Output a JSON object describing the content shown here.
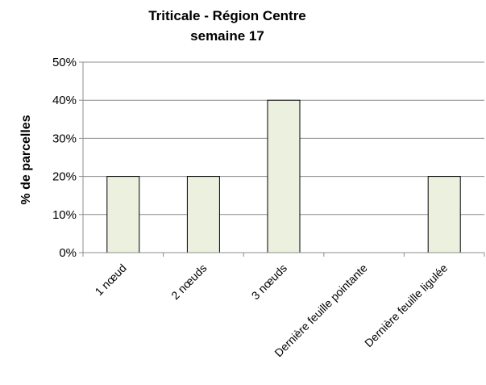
{
  "chart_data": {
    "type": "bar",
    "title_line1": "Triticale - Région Centre",
    "title_line2": "semaine 17",
    "ylabel": "% de parcelles",
    "xlabel": "",
    "ylim": [
      0,
      50
    ],
    "yticks": [
      "0%",
      "10%",
      "20%",
      "30%",
      "40%",
      "50%"
    ],
    "categories": [
      "1 nœud",
      "2 nœuds",
      "3 nœuds",
      "Dernière feuille pointante",
      "Dernière feuille ligulée"
    ],
    "values": [
      20,
      20,
      40,
      0,
      20
    ],
    "grid": true,
    "colors": {
      "bar_fill": "#ebf1de",
      "bar_stroke": "#000000",
      "grid": "#8c8c8c",
      "axis": "#8c8c8c"
    }
  }
}
